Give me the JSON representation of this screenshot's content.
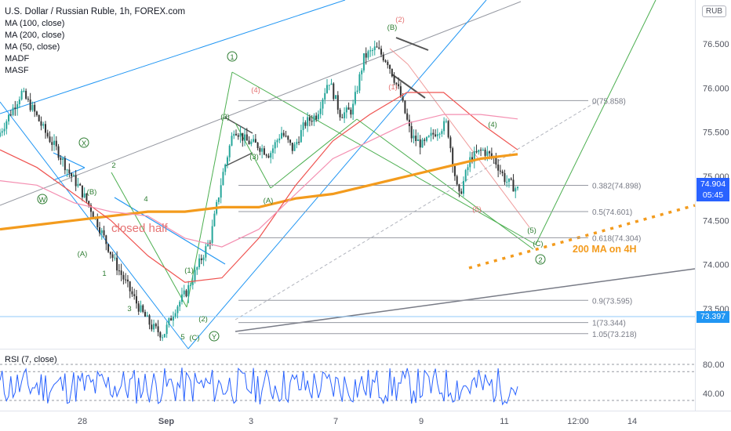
{
  "header": {
    "title": "U.S. Dollar / Russian Ruble, 1h, FOREX.com",
    "indicators": [
      "MA (100, close)",
      "MA (200, close)",
      "MA (50, close)",
      "MADF",
      "MASF"
    ],
    "currency": "RUB"
  },
  "rsi": {
    "label": "RSI (7, close)",
    "ticks": [
      "80.00",
      "40.00"
    ],
    "levels": [
      80,
      70,
      30
    ]
  },
  "price_tags": {
    "last": "74.904",
    "countdown": "05:45",
    "level": "73.397"
  },
  "colors": {
    "ma200": "#f39b1d",
    "ma100": "#ef5350",
    "ma50": "#f48fb1",
    "wave": "#4caf50",
    "trend": "#2196f3",
    "last_tag": "#2962ff",
    "level_tag": "#2196f3",
    "rsi": "#2962ff"
  },
  "chart_data": {
    "type": "line",
    "instrument": "USD/RUB",
    "timeframe": "1h",
    "x_tick_labels": [
      "28",
      "Sep",
      "3",
      "7",
      "9",
      "11",
      "12:00",
      "14"
    ],
    "y_tick_labels": [
      "76.500",
      "76.000",
      "75.500",
      "75.000",
      "74.500",
      "74.000",
      "73.500"
    ],
    "ylim": [
      73.05,
      77.05
    ],
    "series": [
      {
        "values": [
          75.45,
          75.7,
          75.95,
          75.75,
          75.5,
          75.3,
          75.05,
          74.85,
          74.6,
          74.3,
          74.0,
          73.75,
          73.5,
          73.3,
          73.2,
          73.5,
          73.7,
          74.0,
          74.3,
          75.0,
          75.55,
          75.4,
          75.35,
          75.25,
          75.5,
          75.3,
          75.6,
          75.7,
          76.1,
          75.7,
          75.75,
          76.35,
          76.45,
          76.3,
          75.95,
          75.45,
          75.35,
          75.5,
          75.6,
          74.75,
          75.2,
          75.3,
          75.2,
          74.95,
          74.85
        ]
      },
      {
        "name": "MA (200, close)",
        "values": [
          74.4,
          74.45,
          74.5,
          74.55,
          74.6,
          74.6,
          74.65,
          74.65,
          74.75,
          74.8,
          74.9,
          75.0,
          75.1,
          75.2,
          75.25
        ]
      },
      {
        "name": "MA (100, close)",
        "values": [
          75.3,
          75.1,
          74.8,
          74.5,
          74.1,
          73.8,
          73.85,
          74.3,
          74.9,
          75.4,
          75.7,
          75.95,
          75.95,
          75.6,
          75.3
        ]
      },
      {
        "name": "MA (50, close)",
        "values": [
          74.95,
          74.9,
          74.7,
          74.6,
          74.55,
          74.3,
          74.2,
          74.4,
          74.8,
          75.2,
          75.4,
          75.6,
          75.7,
          75.7,
          75.65
        ]
      }
    ],
    "annotations": {
      "fib_levels": [
        "0(75.858)",
        "0.382(74.898)",
        "0.5(74.601)",
        "0.618(74.304)",
        "0.9(73.595)",
        "1(73.344)",
        "1.05(73.218)"
      ],
      "texts": [
        "closed half",
        "200 MA on 4H"
      ],
      "wave_labels": [
        "W",
        "X",
        "Y",
        "(A)",
        "(B)",
        "(C)",
        "1",
        "2",
        "3",
        "4",
        "5",
        "(1)",
        "(2)",
        "(3)",
        "(4)",
        "(5)",
        "(A)",
        "(B)",
        "(C)",
        "1",
        "2",
        "(1)",
        "(2)",
        "(3)",
        "(4)",
        "(5)"
      ]
    }
  }
}
